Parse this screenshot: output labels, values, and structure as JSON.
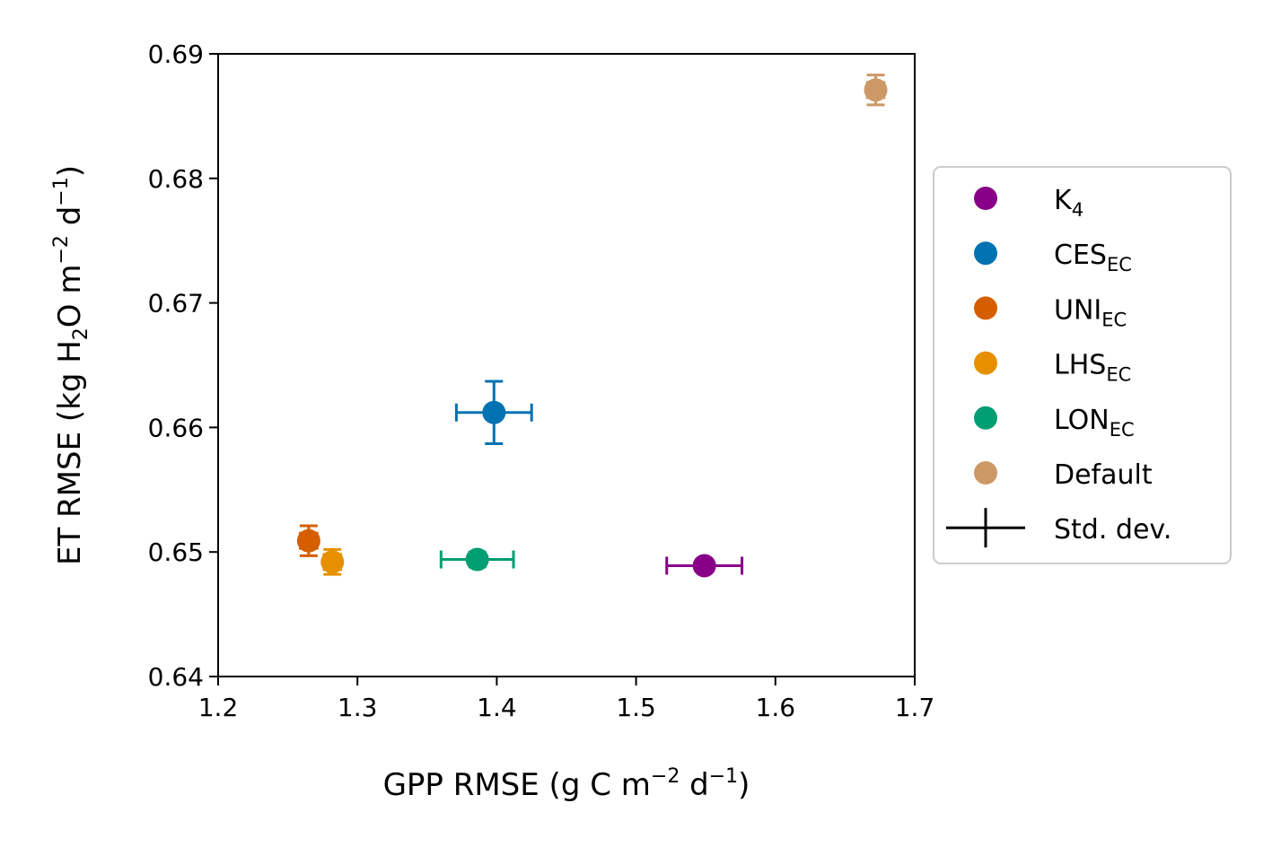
{
  "chart_data": {
    "type": "scatter",
    "xlabel": {
      "main": "GPP RMSE (g C m",
      "sup1": "−2",
      "mid": " d",
      "sup2": "−1",
      "end": ")"
    },
    "ylabel": {
      "a": "ET RMSE (kg H",
      "sub": "2",
      "b": "O m",
      "sup1": "−2",
      "c": " d",
      "sup2": "−1",
      "d": ")"
    },
    "xlim": [
      1.2,
      1.7
    ],
    "ylim": [
      0.64,
      0.69
    ],
    "xticks": [
      "1.2",
      "1.3",
      "1.4",
      "1.5",
      "1.6",
      "1.7"
    ],
    "yticks": [
      "0.64",
      "0.65",
      "0.66",
      "0.67",
      "0.68",
      "0.69"
    ],
    "grid": false,
    "legend_placement": "right, outside",
    "series": [
      {
        "name": "K",
        "sub": "4",
        "color": "#880088",
        "x": 1.549,
        "y": 0.6489,
        "xerr": 0.027,
        "yerr": 0.0003
      },
      {
        "name": "CES",
        "sub": "EC",
        "color": "#0072b2",
        "x": 1.398,
        "y": 0.6612,
        "xerr": 0.027,
        "yerr": 0.0025
      },
      {
        "name": "UNI",
        "sub": "EC",
        "color": "#d55e00",
        "x": 1.265,
        "y": 0.6509,
        "xerr": 0.006,
        "yerr": 0.0012
      },
      {
        "name": "LHS",
        "sub": "EC",
        "color": "#e69000",
        "x": 1.282,
        "y": 0.6492,
        "xerr": 0.006,
        "yerr": 0.001
      },
      {
        "name": "LON",
        "sub": "EC",
        "color": "#009e73",
        "x": 1.386,
        "y": 0.6494,
        "xerr": 0.026,
        "yerr": 0.0006
      },
      {
        "name": "Default",
        "sub": "",
        "color": "#cc9966",
        "x": 1.672,
        "y": 0.6871,
        "xerr": 0.006,
        "yerr": 0.0012
      }
    ],
    "errorbar_legend": "Std. dev."
  }
}
